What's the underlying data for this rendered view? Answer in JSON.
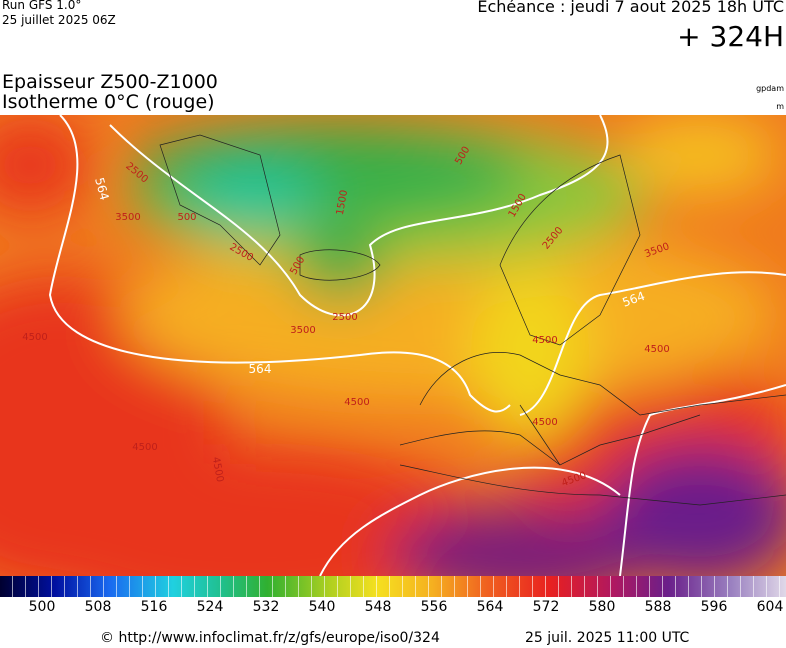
{
  "header": {
    "run": "Run GFS 1.0°",
    "run_date": "25 juillet 2025 06Z",
    "echeance": "Echéance : jeudi 7 aout 2025 18h UTC",
    "lead": "+ 324H",
    "title1": "Epaisseur Z500-Z1000",
    "title2": "Isotherme 0°C (rouge)",
    "unit1": "gpdam",
    "unit2": "m"
  },
  "map": {
    "thickness_labels": [
      564,
      564,
      564
    ],
    "isotherm_labels": [
      2500,
      3500,
      500,
      2500,
      3500,
      2500,
      500,
      1500,
      500,
      1500,
      2500,
      3500,
      4500,
      4500,
      4500,
      4500,
      4500,
      4500,
      4500,
      4500
    ]
  },
  "colorbar": {
    "ticks": [
      500,
      508,
      516,
      524,
      532,
      540,
      548,
      556,
      564,
      572,
      580,
      588,
      596,
      604
    ]
  },
  "footer": {
    "url": "© http://www.infoclimat.fr/z/gfs/europe/iso0/324",
    "date": "25 juil. 2025 11:00 UTC"
  }
}
